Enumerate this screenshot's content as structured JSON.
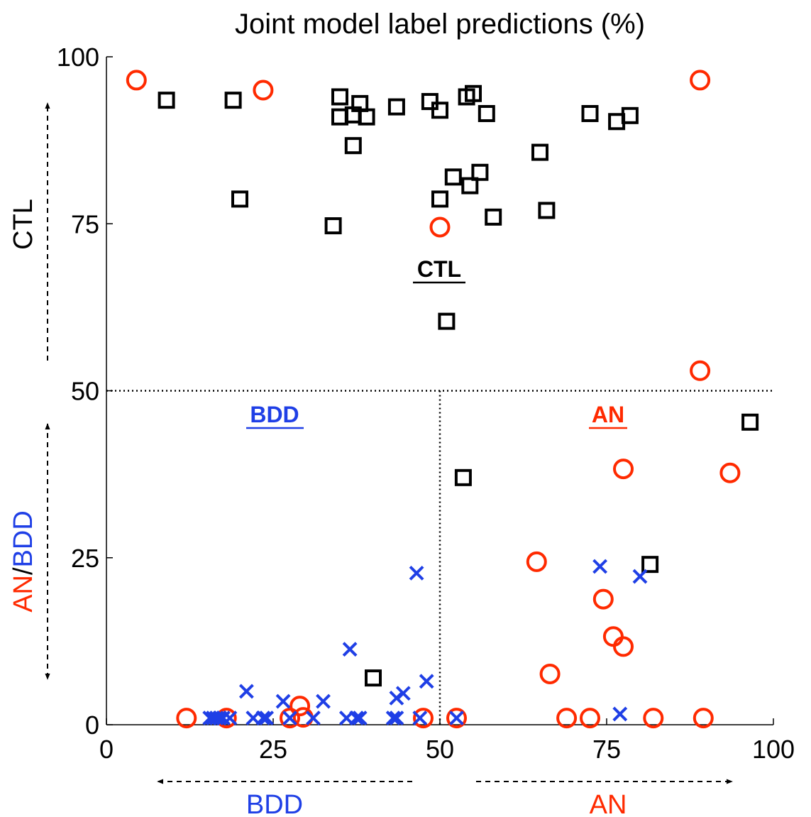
{
  "chart_data": {
    "type": "scatter",
    "title": "Joint model label predictions (%)",
    "xlim": [
      0,
      100
    ],
    "ylim": [
      0,
      100
    ],
    "x_ticks": [
      "0",
      "25",
      "50",
      "75",
      "100"
    ],
    "y_ticks": [
      "0",
      "25",
      "50",
      "75",
      "100"
    ],
    "grid": false,
    "divider_lines": {
      "horizontal_y": 50,
      "vertical_x": 50
    },
    "region_labels": {
      "ctl": "CTL",
      "bdd": "BDD",
      "an": "AN"
    },
    "y_axis_annotations": {
      "top": "CTL",
      "bottom_an": "AN",
      "bottom_sep": "/",
      "bottom_bdd": "BDD"
    },
    "x_axis_annotations": {
      "left": "BDD",
      "right": "AN"
    },
    "colors": {
      "ctl": "#000000",
      "an": "#ff2a00",
      "bdd": "#1f3fe6"
    },
    "series": [
      {
        "marker": "square",
        "color": "#000000",
        "points": [
          [
            9,
            93.5
          ],
          [
            19,
            93.5
          ],
          [
            20,
            78.7
          ],
          [
            34,
            74.7
          ],
          [
            35,
            94
          ],
          [
            35,
            91
          ],
          [
            37,
            91.3
          ],
          [
            37,
            86.7
          ],
          [
            38,
            93
          ],
          [
            39,
            91
          ],
          [
            43.5,
            92.5
          ],
          [
            48.5,
            93.3
          ],
          [
            50,
            92
          ],
          [
            50,
            78.7
          ],
          [
            52,
            82
          ],
          [
            54,
            94
          ],
          [
            55,
            94.5
          ],
          [
            54.5,
            80.7
          ],
          [
            56,
            82.7
          ],
          [
            57,
            91.5
          ],
          [
            58,
            76
          ],
          [
            65,
            85.7
          ],
          [
            66,
            77
          ],
          [
            72.5,
            91.5
          ],
          [
            76.5,
            90.3
          ],
          [
            78.5,
            91.2
          ],
          [
            51,
            60.4
          ],
          [
            53.5,
            37
          ],
          [
            40,
            7
          ],
          [
            81.5,
            24
          ],
          [
            96.5,
            45.3
          ]
        ]
      },
      {
        "marker": "circle",
        "color": "#ff2a00",
        "points": [
          [
            4.5,
            96.5
          ],
          [
            23.5,
            95
          ],
          [
            89,
            96.5
          ],
          [
            50,
            74.5
          ],
          [
            89,
            53
          ],
          [
            77.5,
            38.3
          ],
          [
            93.5,
            37.7
          ],
          [
            64.5,
            24.4
          ],
          [
            74.5,
            18.8
          ],
          [
            76,
            13.2
          ],
          [
            77.5,
            11.7
          ],
          [
            66.5,
            7.6
          ],
          [
            12,
            1
          ],
          [
            18,
            1
          ],
          [
            27.5,
            1
          ],
          [
            29,
            2.8
          ],
          [
            29.5,
            1.1
          ],
          [
            47.5,
            1
          ],
          [
            52.5,
            1
          ],
          [
            69,
            1
          ],
          [
            72.5,
            1
          ],
          [
            82,
            1
          ],
          [
            89.5,
            1
          ]
        ]
      },
      {
        "marker": "x",
        "color": "#1f3fe6",
        "points": [
          [
            15.5,
            1
          ],
          [
            16,
            1
          ],
          [
            16.5,
            1
          ],
          [
            17,
            1
          ],
          [
            17.5,
            1
          ],
          [
            18.5,
            1
          ],
          [
            21,
            5
          ],
          [
            22,
            1
          ],
          [
            23.5,
            1
          ],
          [
            24,
            1
          ],
          [
            26.5,
            3.5
          ],
          [
            27.5,
            1
          ],
          [
            31,
            1
          ],
          [
            32.5,
            3.5
          ],
          [
            36,
            1
          ],
          [
            36.5,
            11.3
          ],
          [
            37.5,
            1
          ],
          [
            38,
            1
          ],
          [
            43,
            1
          ],
          [
            43.5,
            1
          ],
          [
            43.5,
            4
          ],
          [
            44.5,
            4.7
          ],
          [
            46.5,
            22.7
          ],
          [
            47,
            1
          ],
          [
            48,
            6.5
          ],
          [
            52.5,
            1
          ],
          [
            74,
            23.7
          ],
          [
            77,
            1.6
          ],
          [
            80,
            22.2
          ]
        ]
      }
    ]
  }
}
